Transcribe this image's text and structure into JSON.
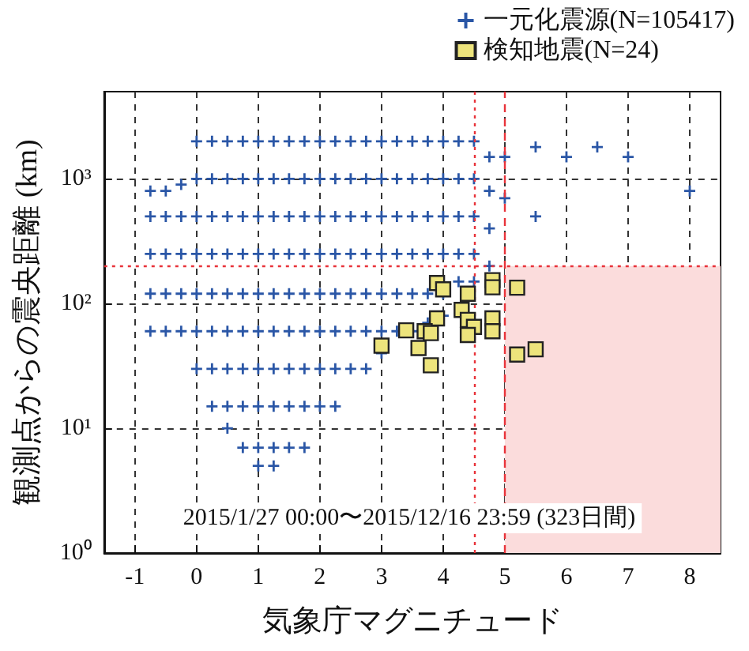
{
  "chart_data": {
    "type": "scatter",
    "xlabel": "気象庁マグニチュード",
    "ylabel": "観測点からの震央距離 (km)",
    "xlim": [
      -1.5,
      8.5
    ],
    "xticks": [
      -1,
      0,
      1,
      2,
      3,
      4,
      5,
      6,
      7,
      8
    ],
    "ylim": [
      1,
      5000
    ],
    "yticks": [
      {
        "value": 1,
        "label": "10⁰"
      },
      {
        "value": 10,
        "label": "10¹"
      },
      {
        "value": 100,
        "label": "10²"
      },
      {
        "value": 1000,
        "label": "10³"
      }
    ],
    "log": "y",
    "grid": true,
    "legend": "top right",
    "series": [
      {
        "name": "一元化震源(N=105417)",
        "color": "#2a56a6",
        "marker": "cross",
        "x": [
          -0.75,
          -0.75,
          -0.75,
          -0.75,
          -0.75,
          -0.5,
          -0.5,
          -0.5,
          -0.5,
          -0.5,
          -0.25,
          -0.25,
          -0.25,
          -0.25,
          -0.25,
          0,
          0,
          0,
          0,
          0,
          0,
          0,
          0.25,
          0.25,
          0.25,
          0.25,
          0.25,
          0.25,
          0.25,
          0.25,
          0.5,
          0.5,
          0.5,
          0.5,
          0.5,
          0.5,
          0.5,
          0.5,
          0.5,
          0.75,
          0.75,
          0.75,
          0.75,
          0.75,
          0.75,
          0.75,
          0.75,
          0.75,
          1,
          1,
          1,
          1,
          1,
          1,
          1,
          1,
          1,
          1,
          1.25,
          1.25,
          1.25,
          1.25,
          1.25,
          1.25,
          1.25,
          1.25,
          1.25,
          1.25,
          1.5,
          1.5,
          1.5,
          1.5,
          1.5,
          1.5,
          1.5,
          1.5,
          1.5,
          1.75,
          1.75,
          1.75,
          1.75,
          1.75,
          1.75,
          1.75,
          1.75,
          1.75,
          2,
          2,
          2,
          2,
          2,
          2,
          2,
          2,
          2.25,
          2.25,
          2.25,
          2.25,
          2.25,
          2.25,
          2.25,
          2.25,
          2.5,
          2.5,
          2.5,
          2.5,
          2.5,
          2.5,
          2.5,
          2.75,
          2.75,
          2.75,
          2.75,
          2.75,
          2.75,
          2.75,
          3,
          3,
          3,
          3,
          3,
          3,
          3,
          3.25,
          3.25,
          3.25,
          3.25,
          3.25,
          3.25,
          3.5,
          3.5,
          3.5,
          3.5,
          3.5,
          3.5,
          3.75,
          3.75,
          3.75,
          3.75,
          3.75,
          3.75,
          4,
          4,
          4,
          4,
          4,
          4,
          4.25,
          4.25,
          4.25,
          4.25,
          4.25,
          4.5,
          4.5,
          4.5,
          4.5,
          4.5,
          4.75,
          4.75,
          4.75,
          4.75,
          5,
          5,
          5.5,
          5.5,
          6,
          6.5,
          7,
          8
        ],
        "values": [
          800,
          500,
          250,
          120,
          60,
          800,
          500,
          250,
          120,
          60,
          900,
          500,
          250,
          120,
          60,
          2000,
          1000,
          500,
          250,
          120,
          60,
          30,
          2000,
          1000,
          500,
          250,
          120,
          60,
          30,
          15,
          2000,
          1000,
          500,
          250,
          120,
          60,
          30,
          15,
          10,
          2000,
          1000,
          500,
          250,
          120,
          60,
          30,
          15,
          7,
          2000,
          1000,
          500,
          250,
          120,
          60,
          30,
          15,
          7,
          5,
          2000,
          1000,
          500,
          250,
          120,
          60,
          30,
          15,
          7,
          5,
          2000,
          1000,
          500,
          250,
          120,
          60,
          30,
          15,
          7,
          2000,
          1000,
          500,
          250,
          120,
          60,
          30,
          15,
          7,
          2000,
          1000,
          500,
          250,
          120,
          60,
          30,
          15,
          2000,
          1000,
          500,
          250,
          120,
          60,
          30,
          15,
          2000,
          1000,
          500,
          250,
          120,
          60,
          30,
          2000,
          1000,
          500,
          250,
          120,
          60,
          30,
          2000,
          1000,
          500,
          250,
          120,
          60,
          40,
          2000,
          1000,
          500,
          250,
          120,
          60,
          2000,
          1000,
          500,
          250,
          120,
          60,
          2000,
          1000,
          500,
          250,
          120,
          70,
          2000,
          1000,
          500,
          250,
          120,
          80,
          2000,
          1000,
          500,
          250,
          150,
          2000,
          1000,
          500,
          250,
          150,
          1500,
          800,
          400,
          200,
          1500,
          700,
          1800,
          500,
          1500,
          1800,
          1500,
          800
        ]
      },
      {
        "name": "検知地震(N=24)",
        "color": "#ede47c",
        "marker": "square",
        "x": [
          3.9,
          4.0,
          4.4,
          4.8,
          4.8,
          5.2,
          4.3,
          3.9,
          4.4,
          4.5,
          4.8,
          4.8,
          4.4,
          3.4,
          3.7,
          3.8,
          3.0,
          3.6,
          3.8,
          5.2,
          5.5
        ],
        "values": [
          146,
          130,
          120,
          154,
          135,
          134,
          89,
          76,
          74,
          65,
          76,
          60,
          56,
          61,
          60,
          58,
          46,
          44,
          32,
          39,
          43
        ]
      }
    ],
    "ref_lines": [
      {
        "axis": "x",
        "value": 4.5,
        "color": "#e8333a",
        "line_style": "dotted"
      },
      {
        "axis": "x",
        "value": 5,
        "color": "#e8333a",
        "line_style": "dashed"
      },
      {
        "axis": "y",
        "value": 200,
        "color": "#e8333a",
        "line_style": "dotted"
      }
    ],
    "bands": [
      {
        "axis": "x",
        "from": 5,
        "to": 8.5,
        "color": "#fbdcdc"
      }
    ],
    "annotations": [
      "2015/1/27 00:00〜2015/12/16 23:59 (323日間)"
    ]
  }
}
